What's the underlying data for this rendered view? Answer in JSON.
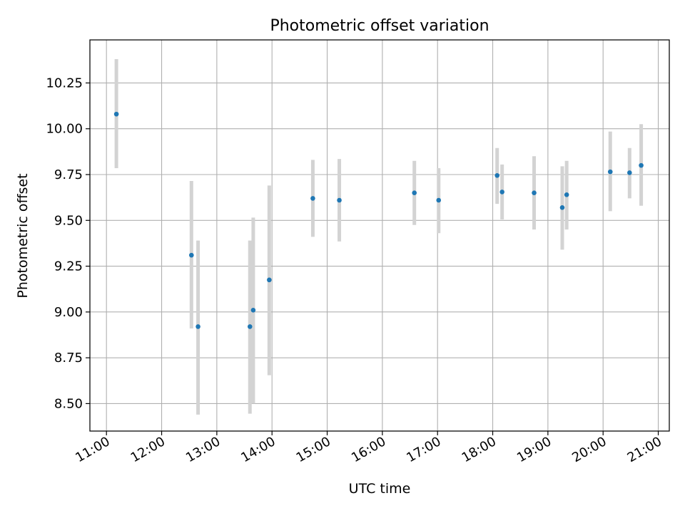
{
  "chart_data": {
    "type": "scatter",
    "title": "Photometric offset variation",
    "xlabel": "UTC time",
    "ylabel": "Photometric offset",
    "grid": true,
    "x_unit": "UTC hour of day",
    "xlim": [
      10.7,
      21.2
    ],
    "ylim": [
      8.35,
      10.485
    ],
    "x_ticks": [
      {
        "value": 11,
        "label": "11:00"
      },
      {
        "value": 12,
        "label": "12:00"
      },
      {
        "value": 13,
        "label": "13:00"
      },
      {
        "value": 14,
        "label": "14:00"
      },
      {
        "value": 15,
        "label": "15:00"
      },
      {
        "value": 16,
        "label": "16:00"
      },
      {
        "value": 17,
        "label": "17:00"
      },
      {
        "value": 18,
        "label": "18:00"
      },
      {
        "value": 19,
        "label": "19:00"
      },
      {
        "value": 20,
        "label": "20:00"
      },
      {
        "value": 21,
        "label": "21:00"
      }
    ],
    "y_ticks": [
      {
        "value": 8.5,
        "label": "8.50"
      },
      {
        "value": 8.75,
        "label": "8.75"
      },
      {
        "value": 9.0,
        "label": "9.00"
      },
      {
        "value": 9.25,
        "label": "9.25"
      },
      {
        "value": 9.5,
        "label": "9.50"
      },
      {
        "value": 9.75,
        "label": "9.75"
      },
      {
        "value": 10.0,
        "label": "10.00"
      },
      {
        "value": 10.25,
        "label": "10.25"
      }
    ],
    "point_color": "#1f77b4",
    "errorbar_color": "#d3d3d3",
    "points": [
      {
        "x": 11.18,
        "y": 10.08,
        "ylow": 9.785,
        "yhigh": 10.38
      },
      {
        "x": 12.54,
        "y": 9.31,
        "ylow": 8.91,
        "yhigh": 9.715
      },
      {
        "x": 12.66,
        "y": 8.92,
        "ylow": 8.44,
        "yhigh": 9.39
      },
      {
        "x": 13.6,
        "y": 8.92,
        "ylow": 8.445,
        "yhigh": 9.39
      },
      {
        "x": 13.66,
        "y": 9.01,
        "ylow": 8.5,
        "yhigh": 9.515
      },
      {
        "x": 13.95,
        "y": 9.175,
        "ylow": 8.655,
        "yhigh": 9.69
      },
      {
        "x": 14.74,
        "y": 9.62,
        "ylow": 9.41,
        "yhigh": 9.83
      },
      {
        "x": 15.22,
        "y": 9.61,
        "ylow": 9.385,
        "yhigh": 9.835
      },
      {
        "x": 16.58,
        "y": 9.65,
        "ylow": 9.475,
        "yhigh": 9.825
      },
      {
        "x": 17.02,
        "y": 9.61,
        "ylow": 9.43,
        "yhigh": 9.785
      },
      {
        "x": 18.08,
        "y": 9.745,
        "ylow": 9.59,
        "yhigh": 9.895
      },
      {
        "x": 18.17,
        "y": 9.655,
        "ylow": 9.505,
        "yhigh": 9.805
      },
      {
        "x": 18.75,
        "y": 9.65,
        "ylow": 9.45,
        "yhigh": 9.85
      },
      {
        "x": 19.26,
        "y": 9.57,
        "ylow": 9.34,
        "yhigh": 9.795
      },
      {
        "x": 19.34,
        "y": 9.64,
        "ylow": 9.45,
        "yhigh": 9.825
      },
      {
        "x": 20.13,
        "y": 9.765,
        "ylow": 9.55,
        "yhigh": 9.985
      },
      {
        "x": 20.48,
        "y": 9.76,
        "ylow": 9.62,
        "yhigh": 9.895
      },
      {
        "x": 20.69,
        "y": 9.8,
        "ylow": 9.58,
        "yhigh": 10.025
      }
    ]
  }
}
